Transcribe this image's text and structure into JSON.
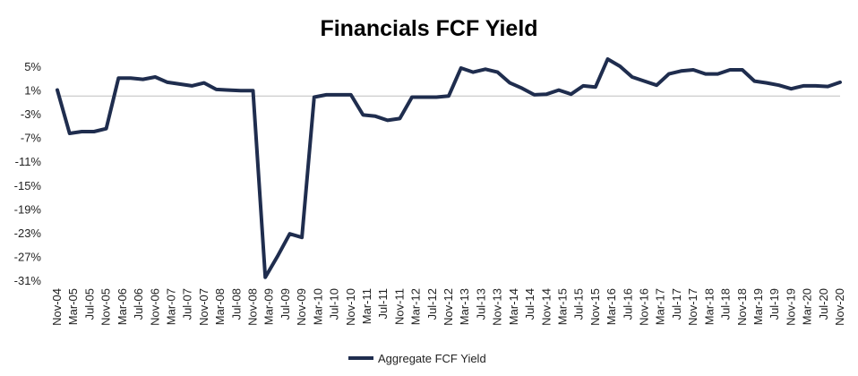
{
  "chart_data": {
    "type": "line",
    "title": "Financials FCF Yield",
    "xlabel": "",
    "ylabel": "",
    "ylim": [
      -31,
      7
    ],
    "yticks": [
      "5%",
      "1%",
      "-3%",
      "-7%",
      "-11%",
      "-15%",
      "-19%",
      "-23%",
      "-27%",
      "-31%"
    ],
    "ytick_values": [
      5,
      1,
      -3,
      -7,
      -11,
      -15,
      -19,
      -23,
      -27,
      -31
    ],
    "xtick_labels": [
      "Nov-04",
      "Mar-05",
      "Jul-05",
      "Nov-05",
      "Mar-06",
      "Jul-06",
      "Nov-06",
      "Mar-07",
      "Jul-07",
      "Nov-07",
      "Mar-08",
      "Jul-08",
      "Nov-08",
      "Mar-09",
      "Jul-09",
      "Nov-09",
      "Mar-10",
      "Jul-10",
      "Nov-10",
      "Mar-11",
      "Jul-11",
      "Nov-11",
      "Mar-12",
      "Jul-12",
      "Nov-12",
      "Mar-13",
      "Jul-13",
      "Nov-13",
      "Mar-14",
      "Jul-14",
      "Nov-14",
      "Mar-15",
      "Jul-15",
      "Nov-15",
      "Mar-16",
      "Jul-16",
      "Nov-16",
      "Mar-17",
      "Jul-17",
      "Nov-17",
      "Mar-18",
      "Jul-18",
      "Nov-18",
      "Mar-19",
      "Jul-19",
      "Nov-19",
      "Mar-20",
      "Jul-20",
      "Nov-20"
    ],
    "grid": false,
    "legend_position": "bottom-center",
    "line_color": "#1f2d4e",
    "series": [
      {
        "name": "Aggregate FCF Yield",
        "values": [
          1.0,
          -6.3,
          -6.0,
          -6.0,
          -5.5,
          3.0,
          3.0,
          2.8,
          3.2,
          2.3,
          2.0,
          1.7,
          2.2,
          1.1,
          1.0,
          0.9,
          0.9,
          -30.5,
          -27.0,
          -23.2,
          -23.8,
          -0.2,
          0.2,
          0.2,
          0.2,
          -3.2,
          -3.4,
          -4.1,
          -3.8,
          -0.2,
          -0.2,
          -0.2,
          0.0,
          4.7,
          4.0,
          4.5,
          4.0,
          2.2,
          1.3,
          0.2,
          0.3,
          1.0,
          0.3,
          1.7,
          1.5,
          6.2,
          5.0,
          3.2,
          2.5,
          1.8,
          3.7,
          4.2,
          4.4,
          3.7,
          3.7,
          4.4,
          4.4,
          2.5,
          2.2,
          1.8,
          1.2,
          1.7,
          1.7,
          1.6,
          2.3
        ]
      }
    ]
  }
}
